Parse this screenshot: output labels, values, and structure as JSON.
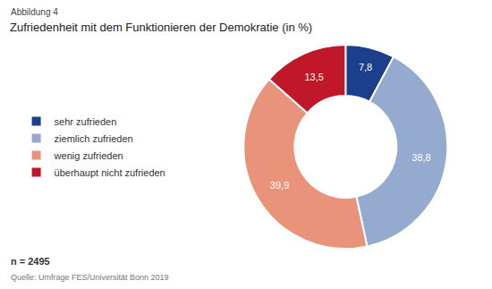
{
  "chart_data": {
    "type": "pie",
    "title": "Zufriedenheit mit dem Funktionieren der Demokratie (in %)",
    "categories": [
      "sehr zufrieden",
      "ziemlich zufrieden",
      "wenig zufrieden",
      "überhaupt nicht zufrieden"
    ],
    "values": [
      7.8,
      38.8,
      39.9,
      13.5
    ],
    "value_labels": [
      "7,8",
      "38,8",
      "39,9",
      "13,5"
    ],
    "colors": [
      "#1b3f8b",
      "#94aacf",
      "#e8937a",
      "#c0182a"
    ],
    "data_labels": true,
    "legend": "left",
    "annotations": [
      "Abbildung 4",
      "n = 2495",
      "Quelle: Umfrage FES/Universität Bonn 2019"
    ]
  }
}
